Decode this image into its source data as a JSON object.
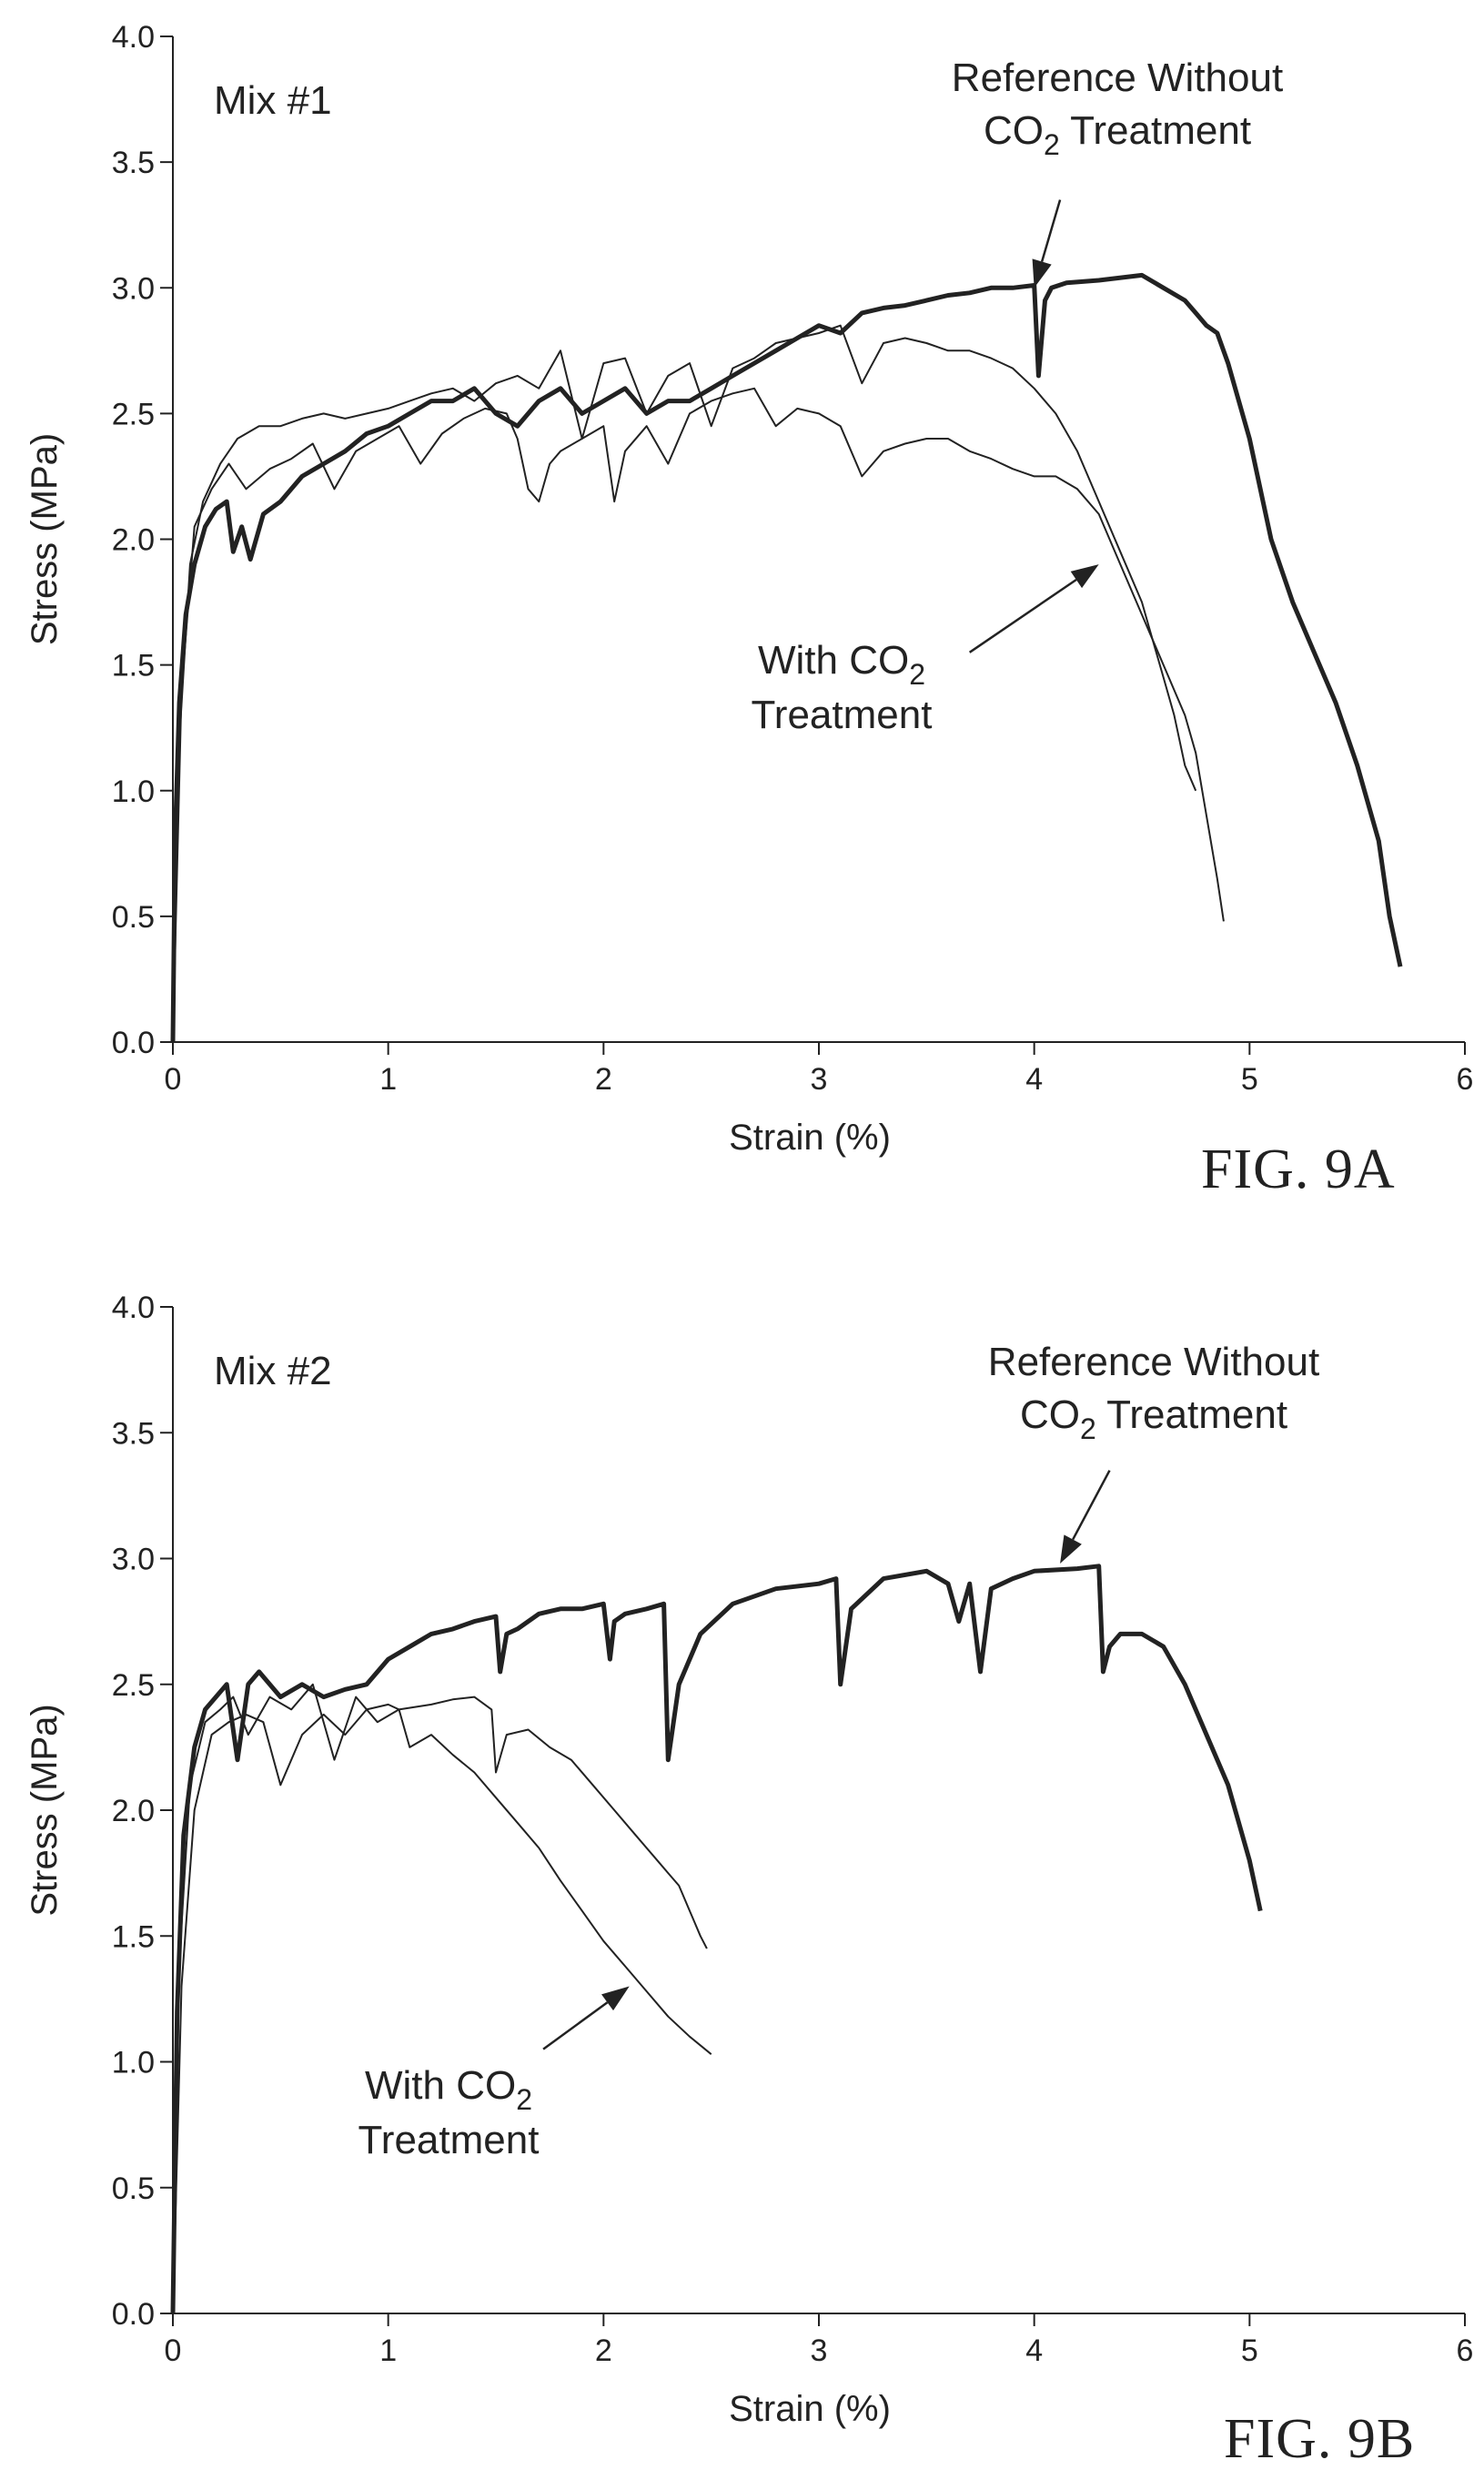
{
  "charts": [
    {
      "type": "line",
      "panel_label": "Mix #1",
      "figure_label": "FIG. 9A",
      "xlabel": "Strain (%)",
      "ylabel": "Stress (MPa)",
      "xlim": [
        0,
        6
      ],
      "ylim": [
        0,
        4
      ],
      "xticks": [
        "0",
        "1",
        "2",
        "3",
        "4",
        "5",
        "6"
      ],
      "yticks": [
        "0.0",
        "0.5",
        "1.0",
        "1.5",
        "2.0",
        "2.5",
        "3.0",
        "3.5",
        "4.0"
      ],
      "annotations": {
        "reference": {
          "line1": "Reference Without",
          "line2_pre": "CO",
          "line2_sub": "2",
          "line2_post": " Treatment",
          "arrow_tip": [
            4.0,
            3.0
          ],
          "arrow_tail": [
            4.12,
            3.35
          ]
        },
        "co2": {
          "line1_pre": "With CO",
          "line1_sub": "2",
          "line2": "Treatment",
          "arrow_tip": [
            4.3,
            1.9
          ],
          "arrow_tail": [
            3.7,
            1.55
          ]
        }
      },
      "series": [
        {
          "name": "Reference Without CO2 Treatment",
          "style": "thick",
          "x": [
            0.0,
            0.01,
            0.03,
            0.06,
            0.1,
            0.15,
            0.2,
            0.25,
            0.28,
            0.32,
            0.36,
            0.42,
            0.5,
            0.6,
            0.7,
            0.8,
            0.9,
            1.0,
            1.1,
            1.2,
            1.3,
            1.4,
            1.5,
            1.6,
            1.7,
            1.8,
            1.9,
            2.0,
            2.1,
            2.2,
            2.3,
            2.4,
            2.5,
            2.6,
            2.7,
            2.8,
            2.9,
            3.0,
            3.1,
            3.2,
            3.3,
            3.4,
            3.5,
            3.6,
            3.7,
            3.8,
            3.9,
            4.0,
            4.02,
            4.05,
            4.08,
            4.15,
            4.3,
            4.5,
            4.6,
            4.7,
            4.75,
            4.8,
            4.85,
            4.9,
            5.0,
            5.1,
            5.2,
            5.3,
            5.4,
            5.5,
            5.6,
            5.65,
            5.7
          ],
          "y": [
            0.0,
            0.8,
            1.35,
            1.7,
            1.9,
            2.05,
            2.12,
            2.15,
            1.95,
            2.05,
            1.92,
            2.1,
            2.15,
            2.25,
            2.3,
            2.35,
            2.42,
            2.45,
            2.5,
            2.55,
            2.55,
            2.6,
            2.5,
            2.45,
            2.55,
            2.6,
            2.5,
            2.55,
            2.6,
            2.5,
            2.55,
            2.55,
            2.6,
            2.65,
            2.7,
            2.75,
            2.8,
            2.85,
            2.82,
            2.9,
            2.92,
            2.93,
            2.95,
            2.97,
            2.98,
            3.0,
            3.0,
            3.01,
            2.65,
            2.95,
            3.0,
            3.02,
            3.03,
            3.05,
            3.0,
            2.95,
            2.9,
            2.85,
            2.82,
            2.7,
            2.4,
            2.0,
            1.75,
            1.55,
            1.35,
            1.1,
            0.8,
            0.5,
            0.3
          ]
        },
        {
          "name": "With CO2 Treatment (trace 1)",
          "style": "thin",
          "x": [
            0.0,
            0.03,
            0.08,
            0.14,
            0.22,
            0.3,
            0.4,
            0.5,
            0.6,
            0.7,
            0.8,
            0.9,
            1.0,
            1.1,
            1.2,
            1.3,
            1.4,
            1.5,
            1.6,
            1.7,
            1.8,
            1.9,
            2.0,
            2.1,
            2.2,
            2.3,
            2.4,
            2.5,
            2.6,
            2.7,
            2.8,
            2.9,
            3.0,
            3.1,
            3.2,
            3.3,
            3.4,
            3.5,
            3.6,
            3.7,
            3.8,
            3.9,
            4.0,
            4.1,
            4.2,
            4.3,
            4.4,
            4.5,
            4.55,
            4.6,
            4.65,
            4.7,
            4.75
          ],
          "y": [
            0.0,
            1.2,
            1.9,
            2.15,
            2.3,
            2.4,
            2.45,
            2.45,
            2.48,
            2.5,
            2.48,
            2.5,
            2.52,
            2.55,
            2.58,
            2.6,
            2.55,
            2.62,
            2.65,
            2.6,
            2.75,
            2.4,
            2.7,
            2.72,
            2.5,
            2.65,
            2.7,
            2.45,
            2.68,
            2.72,
            2.78,
            2.8,
            2.82,
            2.85,
            2.62,
            2.78,
            2.8,
            2.78,
            2.75,
            2.75,
            2.72,
            2.68,
            2.6,
            2.5,
            2.35,
            2.15,
            1.95,
            1.75,
            1.6,
            1.45,
            1.3,
            1.1,
            1.0
          ]
        },
        {
          "name": "With CO2 Treatment (trace 2)",
          "style": "thin",
          "x": [
            0.0,
            0.04,
            0.1,
            0.18,
            0.26,
            0.34,
            0.45,
            0.55,
            0.65,
            0.75,
            0.85,
            0.95,
            1.05,
            1.15,
            1.25,
            1.35,
            1.45,
            1.55,
            1.6,
            1.65,
            1.7,
            1.75,
            1.8,
            1.9,
            2.0,
            2.05,
            2.1,
            2.2,
            2.3,
            2.4,
            2.5,
            2.6,
            2.7,
            2.8,
            2.9,
            3.0,
            3.1,
            3.2,
            3.3,
            3.4,
            3.5,
            3.6,
            3.7,
            3.8,
            3.9,
            4.0,
            4.1,
            4.2,
            4.3,
            4.4,
            4.5,
            4.6,
            4.7,
            4.75,
            4.8,
            4.85,
            4.88
          ],
          "y": [
            0.0,
            1.4,
            2.05,
            2.2,
            2.3,
            2.2,
            2.28,
            2.32,
            2.38,
            2.2,
            2.35,
            2.4,
            2.45,
            2.3,
            2.42,
            2.48,
            2.52,
            2.5,
            2.4,
            2.2,
            2.15,
            2.3,
            2.35,
            2.4,
            2.45,
            2.15,
            2.35,
            2.45,
            2.3,
            2.5,
            2.55,
            2.58,
            2.6,
            2.45,
            2.52,
            2.5,
            2.45,
            2.25,
            2.35,
            2.38,
            2.4,
            2.4,
            2.35,
            2.32,
            2.28,
            2.25,
            2.25,
            2.2,
            2.1,
            1.9,
            1.7,
            1.5,
            1.3,
            1.15,
            0.9,
            0.65,
            0.48
          ]
        }
      ]
    },
    {
      "type": "line",
      "panel_label": "Mix #2",
      "figure_label": "FIG. 9B",
      "xlabel": "Strain (%)",
      "ylabel": "Stress (MPa)",
      "xlim": [
        0,
        6
      ],
      "ylim": [
        0,
        4
      ],
      "xticks": [
        "0",
        "1",
        "2",
        "3",
        "4",
        "5",
        "6"
      ],
      "yticks": [
        "0.0",
        "0.5",
        "1.0",
        "1.5",
        "2.0",
        "2.5",
        "3.0",
        "3.5",
        "4.0"
      ],
      "annotations": {
        "reference": {
          "line1": "Reference Without",
          "line2_pre": "CO",
          "line2_sub": "2",
          "line2_post": " Treatment",
          "arrow_tip": [
            4.12,
            2.98
          ],
          "arrow_tail": [
            4.35,
            3.35
          ]
        },
        "co2": {
          "line1_pre": "With CO",
          "line1_sub": "2",
          "line2": "Treatment",
          "arrow_tip": [
            2.12,
            1.3
          ],
          "arrow_tail": [
            1.72,
            1.05
          ]
        }
      },
      "series": [
        {
          "name": "Reference Without CO2 Treatment",
          "style": "thick",
          "x": [
            0.0,
            0.02,
            0.05,
            0.1,
            0.15,
            0.2,
            0.25,
            0.3,
            0.35,
            0.4,
            0.5,
            0.6,
            0.7,
            0.8,
            0.9,
            1.0,
            1.1,
            1.2,
            1.3,
            1.4,
            1.5,
            1.52,
            1.55,
            1.6,
            1.7,
            1.8,
            1.9,
            2.0,
            2.03,
            2.05,
            2.1,
            2.2,
            2.28,
            2.3,
            2.35,
            2.45,
            2.6,
            2.8,
            3.0,
            3.08,
            3.1,
            3.15,
            3.3,
            3.5,
            3.6,
            3.65,
            3.7,
            3.75,
            3.8,
            3.9,
            4.0,
            4.2,
            4.3,
            4.32,
            4.35,
            4.4,
            4.5,
            4.6,
            4.7,
            4.8,
            4.9,
            5.0,
            5.05
          ],
          "y": [
            0.0,
            1.2,
            1.9,
            2.25,
            2.4,
            2.45,
            2.5,
            2.2,
            2.5,
            2.55,
            2.45,
            2.5,
            2.45,
            2.48,
            2.5,
            2.6,
            2.65,
            2.7,
            2.72,
            2.75,
            2.77,
            2.55,
            2.7,
            2.72,
            2.78,
            2.8,
            2.8,
            2.82,
            2.6,
            2.75,
            2.78,
            2.8,
            2.82,
            2.2,
            2.5,
            2.7,
            2.82,
            2.88,
            2.9,
            2.92,
            2.5,
            2.8,
            2.92,
            2.95,
            2.9,
            2.75,
            2.9,
            2.55,
            2.88,
            2.92,
            2.95,
            2.96,
            2.97,
            2.55,
            2.65,
            2.7,
            2.7,
            2.65,
            2.5,
            2.3,
            2.1,
            1.8,
            1.6
          ]
        },
        {
          "name": "With CO2 Treatment (trace 1)",
          "style": "thin",
          "x": [
            0.0,
            0.03,
            0.08,
            0.15,
            0.22,
            0.28,
            0.35,
            0.45,
            0.55,
            0.65,
            0.75,
            0.85,
            0.95,
            1.05,
            1.2,
            1.3,
            1.4,
            1.48,
            1.5,
            1.55,
            1.65,
            1.75,
            1.85,
            1.95,
            2.05,
            2.15,
            2.25,
            2.3,
            2.35,
            2.4,
            2.45,
            2.48
          ],
          "y": [
            0.0,
            1.4,
            2.1,
            2.35,
            2.4,
            2.45,
            2.3,
            2.45,
            2.4,
            2.5,
            2.2,
            2.45,
            2.35,
            2.4,
            2.42,
            2.44,
            2.45,
            2.4,
            2.15,
            2.3,
            2.32,
            2.25,
            2.2,
            2.1,
            2.0,
            1.9,
            1.8,
            1.75,
            1.7,
            1.6,
            1.5,
            1.45
          ]
        },
        {
          "name": "With CO2 Treatment (trace 2)",
          "style": "thin",
          "x": [
            0.0,
            0.04,
            0.1,
            0.18,
            0.26,
            0.34,
            0.42,
            0.5,
            0.6,
            0.7,
            0.8,
            0.9,
            1.0,
            1.05,
            1.1,
            1.2,
            1.3,
            1.4,
            1.5,
            1.6,
            1.7,
            1.8,
            1.9,
            2.0,
            2.1,
            2.2,
            2.3,
            2.4,
            2.5
          ],
          "y": [
            0.0,
            1.3,
            2.0,
            2.3,
            2.35,
            2.38,
            2.35,
            2.1,
            2.3,
            2.38,
            2.3,
            2.4,
            2.42,
            2.4,
            2.25,
            2.3,
            2.22,
            2.15,
            2.05,
            1.95,
            1.85,
            1.72,
            1.6,
            1.48,
            1.38,
            1.28,
            1.18,
            1.1,
            1.03
          ]
        }
      ]
    }
  ]
}
